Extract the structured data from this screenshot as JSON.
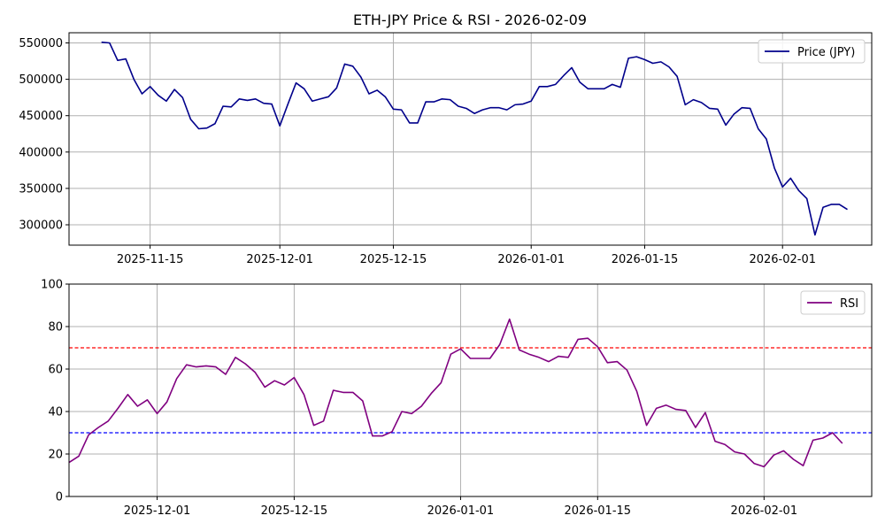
{
  "chart_data": [
    {
      "type": "line",
      "title": "ETH-JPY Price & RSI - 2026-02-09",
      "xlabel": "",
      "ylabel": "",
      "ylim": [
        272000,
        564000
      ],
      "xlim": [
        "2025-11-05",
        "2026-02-12"
      ],
      "grid": true,
      "legend_position": "top-right",
      "x_ticks": [
        "2025-11-15",
        "2025-12-01",
        "2025-12-15",
        "2026-01-01",
        "2026-01-15",
        "2026-02-01"
      ],
      "y_ticks": [
        300000,
        350000,
        400000,
        450000,
        500000,
        550000
      ],
      "x": [
        "2025-11-09",
        "2025-11-10",
        "2025-11-11",
        "2025-11-12",
        "2025-11-13",
        "2025-11-14",
        "2025-11-15",
        "2025-11-16",
        "2025-11-17",
        "2025-11-18",
        "2025-11-19",
        "2025-11-20",
        "2025-11-21",
        "2025-11-22",
        "2025-11-23",
        "2025-11-24",
        "2025-11-25",
        "2025-11-26",
        "2025-11-27",
        "2025-11-28",
        "2025-11-29",
        "2025-11-30",
        "2025-12-01",
        "2025-12-02",
        "2025-12-03",
        "2025-12-04",
        "2025-12-05",
        "2025-12-06",
        "2025-12-07",
        "2025-12-08",
        "2025-12-09",
        "2025-12-10",
        "2025-12-11",
        "2025-12-12",
        "2025-12-13",
        "2025-12-14",
        "2025-12-15",
        "2025-12-16",
        "2025-12-17",
        "2025-12-18",
        "2025-12-19",
        "2025-12-20",
        "2025-12-21",
        "2025-12-22",
        "2025-12-23",
        "2025-12-24",
        "2025-12-25",
        "2025-12-26",
        "2025-12-27",
        "2025-12-28",
        "2025-12-29",
        "2025-12-30",
        "2025-12-31",
        "2026-01-01",
        "2026-01-02",
        "2026-01-03",
        "2026-01-04",
        "2026-01-05",
        "2026-01-06",
        "2026-01-07",
        "2026-01-08",
        "2026-01-09",
        "2026-01-10",
        "2026-01-11",
        "2026-01-12",
        "2026-01-13",
        "2026-01-14",
        "2026-01-15",
        "2026-01-16",
        "2026-01-17",
        "2026-01-18",
        "2026-01-19",
        "2026-01-20",
        "2026-01-21",
        "2026-01-22",
        "2026-01-23",
        "2026-01-24",
        "2026-01-25",
        "2026-01-26",
        "2026-01-27",
        "2026-01-28",
        "2026-01-29",
        "2026-01-30",
        "2026-01-31",
        "2026-02-01",
        "2026-02-02",
        "2026-02-03",
        "2026-02-04",
        "2026-02-05",
        "2026-02-06",
        "2026-02-07",
        "2026-02-08",
        "2026-02-09"
      ],
      "series": [
        {
          "name": "Price (JPY)",
          "color": "#00008b",
          "values": [
            551000,
            550000,
            526000,
            528000,
            500000,
            480000,
            490000,
            478000,
            470000,
            486000,
            475000,
            445000,
            432000,
            433000,
            439000,
            463000,
            462000,
            473000,
            471000,
            473000,
            467000,
            466000,
            436000,
            466000,
            495000,
            487000,
            470000,
            473000,
            476000,
            488000,
            521000,
            518000,
            503000,
            480000,
            485000,
            476000,
            459000,
            458000,
            440000,
            440000,
            469000,
            469000,
            473000,
            472000,
            463000,
            460000,
            453000,
            458000,
            461000,
            461000,
            458000,
            465000,
            466000,
            470000,
            490000,
            490000,
            493000,
            505000,
            516000,
            496000,
            487000,
            487000,
            487000,
            493000,
            489000,
            529000,
            531000,
            527000,
            522000,
            524000,
            517000,
            504000,
            465000,
            472000,
            468000,
            460000,
            459000,
            437000,
            452000,
            461000,
            460000,
            432000,
            418000,
            378000,
            352000,
            364000,
            347000,
            336000,
            286000,
            324000,
            328000,
            328000,
            321000
          ]
        }
      ]
    },
    {
      "type": "line",
      "title": "",
      "xlabel": "",
      "ylabel": "",
      "ylim": [
        0,
        100
      ],
      "xlim": [
        "2025-11-22",
        "2026-02-12"
      ],
      "grid": true,
      "legend_position": "top-right",
      "x_ticks": [
        "2025-12-01",
        "2025-12-15",
        "2026-01-01",
        "2026-01-15",
        "2026-02-01"
      ],
      "y_ticks": [
        0,
        20,
        40,
        60,
        80,
        100
      ],
      "reference_lines": [
        {
          "value": 70,
          "color": "#ff0000",
          "style": "dashed"
        },
        {
          "value": 30,
          "color": "#0000ff",
          "style": "dashed"
        }
      ],
      "x": [
        "2025-11-22",
        "2025-11-23",
        "2025-11-24",
        "2025-11-25",
        "2025-11-26",
        "2025-11-27",
        "2025-11-28",
        "2025-11-29",
        "2025-11-30",
        "2025-12-01",
        "2025-12-02",
        "2025-12-03",
        "2025-12-04",
        "2025-12-05",
        "2025-12-06",
        "2025-12-07",
        "2025-12-08",
        "2025-12-09",
        "2025-12-10",
        "2025-12-11",
        "2025-12-12",
        "2025-12-13",
        "2025-12-14",
        "2025-12-15",
        "2025-12-16",
        "2025-12-17",
        "2025-12-18",
        "2025-12-19",
        "2025-12-20",
        "2025-12-21",
        "2025-12-22",
        "2025-12-23",
        "2025-12-24",
        "2025-12-25",
        "2025-12-26",
        "2025-12-27",
        "2025-12-28",
        "2025-12-29",
        "2025-12-30",
        "2025-12-31",
        "2026-01-01",
        "2026-01-02",
        "2026-01-03",
        "2026-01-04",
        "2026-01-05",
        "2026-01-06",
        "2026-01-07",
        "2026-01-08",
        "2026-01-09",
        "2026-01-10",
        "2026-01-11",
        "2026-01-12",
        "2026-01-13",
        "2026-01-14",
        "2026-01-15",
        "2026-01-16",
        "2026-01-17",
        "2026-01-18",
        "2026-01-19",
        "2026-01-20",
        "2026-01-21",
        "2026-01-22",
        "2026-01-23",
        "2026-01-24",
        "2026-01-25",
        "2026-01-26",
        "2026-01-27",
        "2026-01-28",
        "2026-01-29",
        "2026-01-30",
        "2026-01-31",
        "2026-02-01",
        "2026-02-02",
        "2026-02-03",
        "2026-02-04",
        "2026-02-05",
        "2026-02-06",
        "2026-02-07",
        "2026-02-08",
        "2026-02-09"
      ],
      "series": [
        {
          "name": "RSI",
          "color": "#800080",
          "values": [
            16,
            19,
            29,
            32.5,
            35.5,
            41.5,
            48,
            42.5,
            45.5,
            39,
            44.5,
            55.5,
            62,
            61,
            61.5,
            61,
            57.5,
            65.5,
            62.5,
            58.5,
            51.5,
            54.5,
            52.5,
            56,
            48,
            33.5,
            35.5,
            50,
            49,
            49,
            45,
            28.5,
            28.5,
            30.5,
            40,
            39,
            42.5,
            48.5,
            53.5,
            67,
            69.5,
            65,
            65,
            65,
            71.5,
            83.5,
            69,
            67,
            65.5,
            63.5,
            66,
            65.5,
            74,
            74.5,
            70.5,
            63,
            63.5,
            59.5,
            49.5,
            33.5,
            41.5,
            43,
            41,
            40.5,
            32.5,
            39.5,
            26,
            24.5,
            21,
            20,
            15.5,
            14,
            19.5,
            21.5,
            17.5,
            14.5,
            26.5,
            27.5,
            30,
            25
          ]
        }
      ]
    }
  ]
}
